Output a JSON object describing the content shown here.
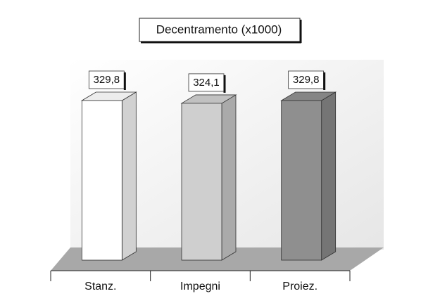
{
  "chart_data": {
    "type": "bar3d",
    "title": "Decentramento (x1000)",
    "categories": [
      "Stanz.",
      "Impegni",
      "Proiez."
    ],
    "values": [
      329.8,
      324.1,
      329.8
    ],
    "value_labels": [
      "329,8",
      "324,1",
      "329,8"
    ],
    "colors": [
      "#ffffff",
      "#cfcfcf",
      "#8f8f8f"
    ]
  }
}
